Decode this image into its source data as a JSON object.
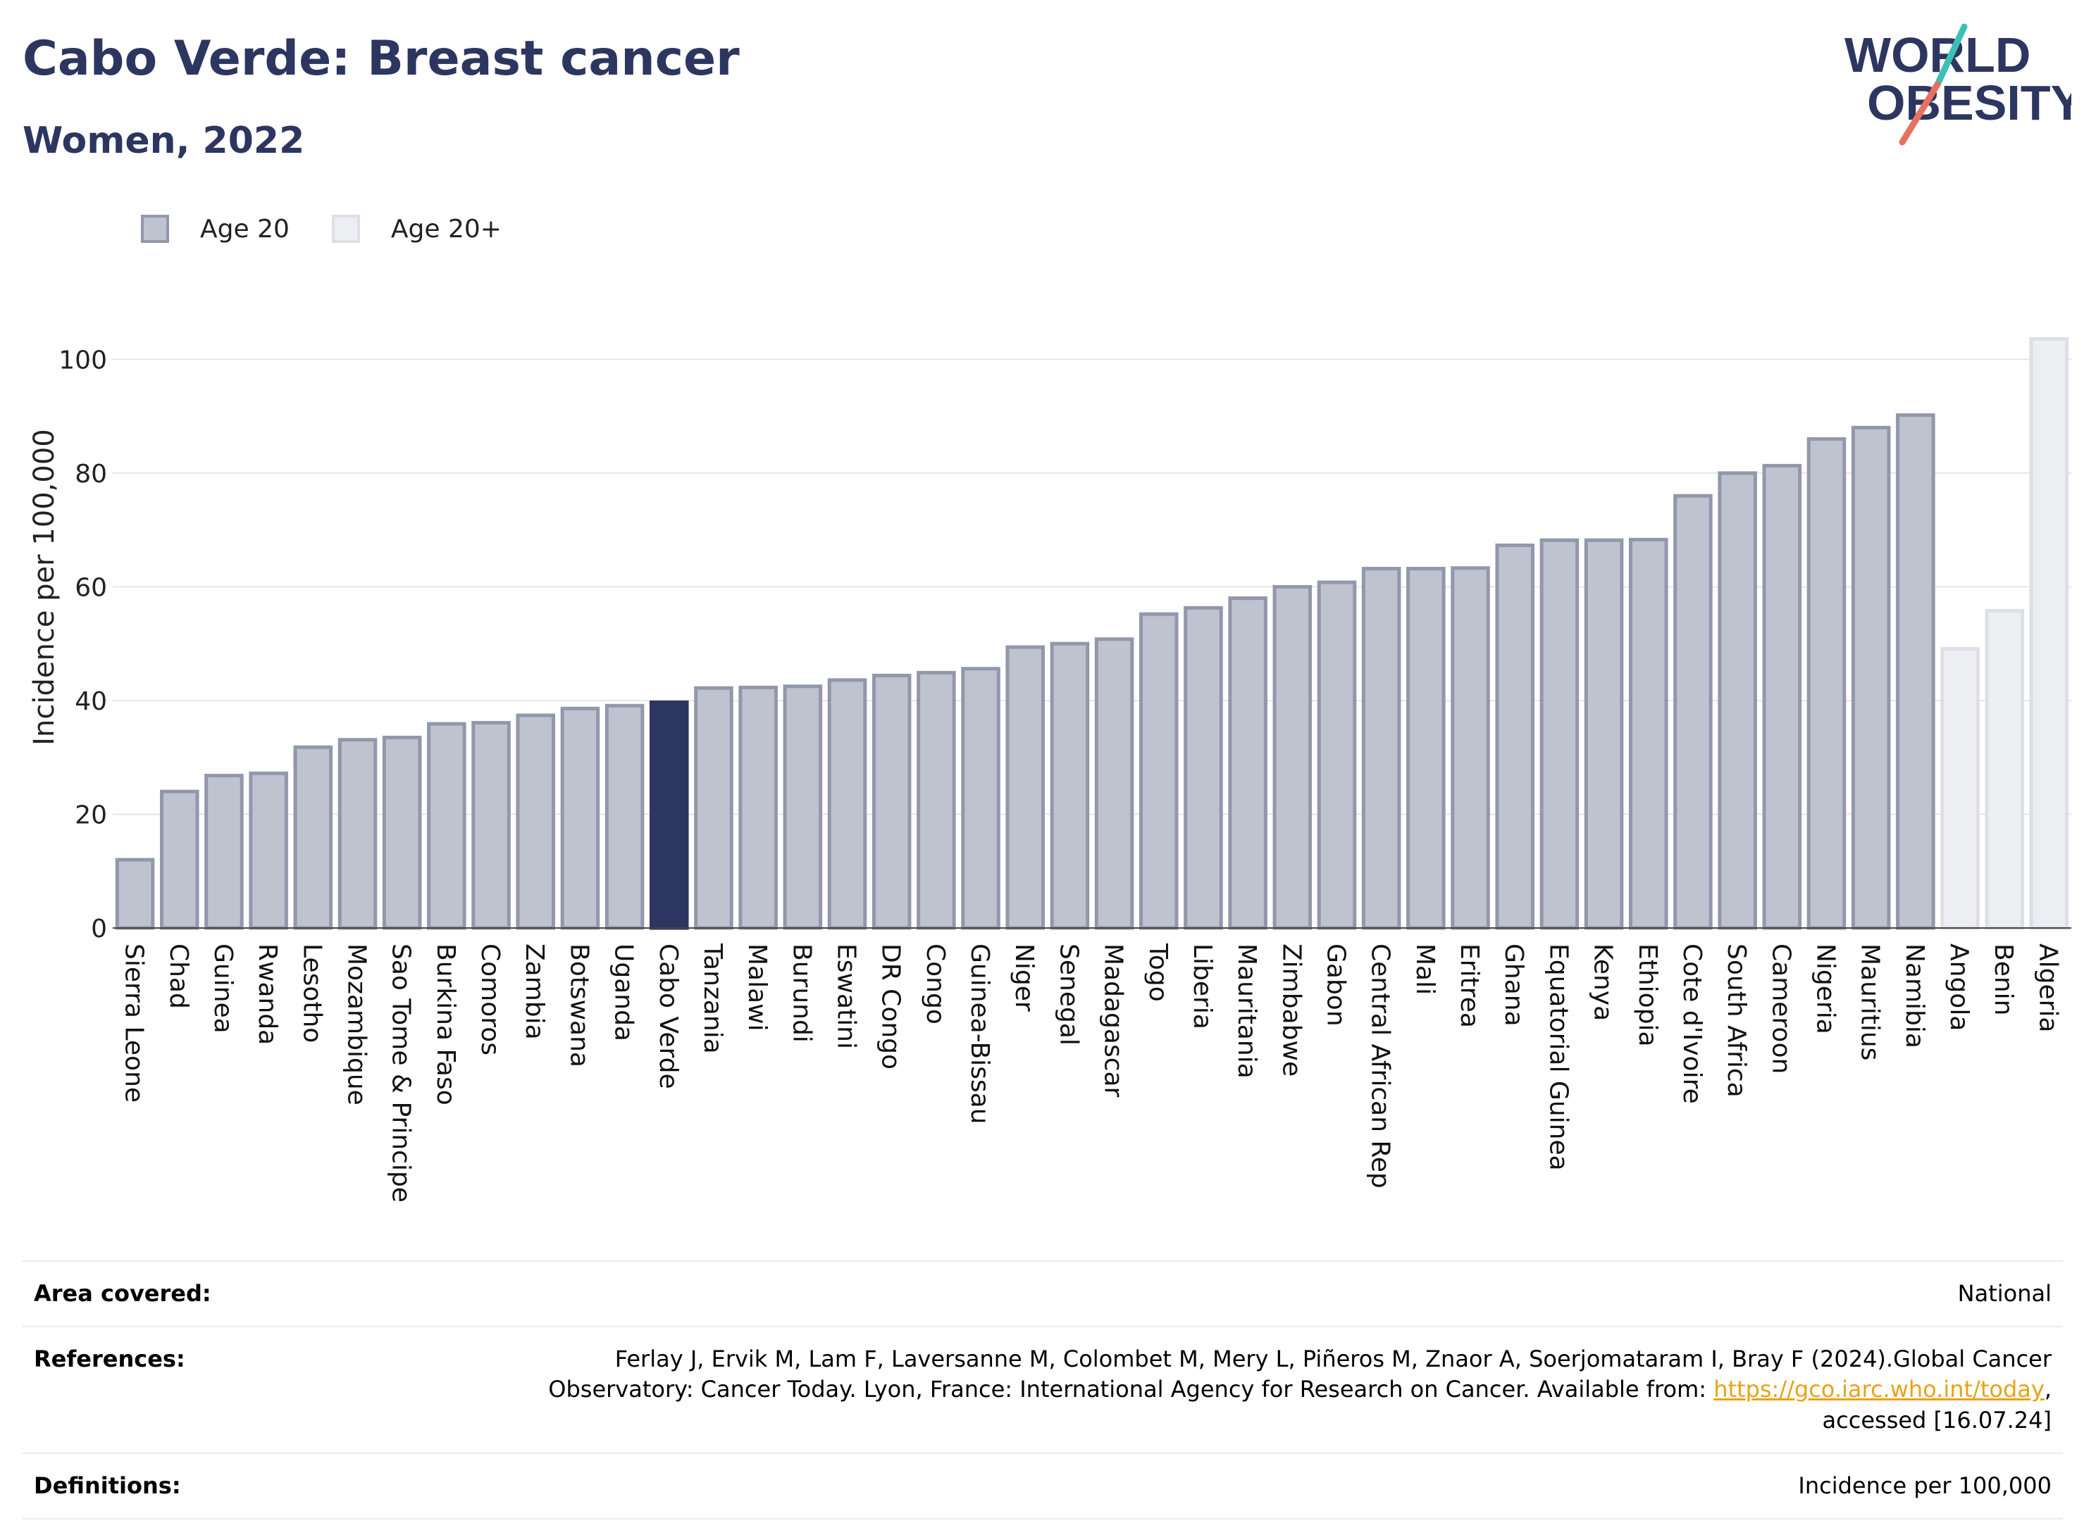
{
  "header": {
    "title": "Cabo Verde: Breast cancer",
    "subtitle": "Women, 2022",
    "logo_line1": "WORLD",
    "logo_line2": "OBESITY"
  },
  "legend": {
    "items": [
      {
        "label": "Age 20",
        "color": "#bfc2cf",
        "border": "#9297ab"
      },
      {
        "label": "Age 20+",
        "color": "#eceef2",
        "border": "#dcdfe6"
      }
    ]
  },
  "chart_data": {
    "type": "bar",
    "title": "Cabo Verde: Breast cancer",
    "subtitle": "Women, 2022",
    "ylabel": "Incidence per 100,000",
    "xlabel": "",
    "ylim": [
      0,
      105
    ],
    "yticks": [
      0,
      20,
      40,
      60,
      80,
      100
    ],
    "grid": true,
    "legend_position": "top-left",
    "highlight": "Cabo Verde",
    "highlight_color": "#2c3660",
    "categories": [
      "Sierra Leone",
      "Chad",
      "Guinea",
      "Rwanda",
      "Lesotho",
      "Mozambique",
      "Sao Tome & Principe",
      "Burkina Faso",
      "Comoros",
      "Zambia",
      "Botswana",
      "Uganda",
      "Cabo Verde",
      "Tanzania",
      "Malawi",
      "Burundi",
      "Eswatini",
      "DR Congo",
      "Congo",
      "Guinea-Bissau",
      "Niger",
      "Senegal",
      "Madagascar",
      "Togo",
      "Liberia",
      "Mauritania",
      "Zimbabwe",
      "Gabon",
      "Central African Rep",
      "Mali",
      "Eritrea",
      "Ghana",
      "Equatorial Guinea",
      "Kenya",
      "Ethiopia",
      "Cote d'Ivoire",
      "South Africa",
      "Cameroon",
      "Nigeria",
      "Mauritius",
      "Namibia",
      "Angola",
      "Benin",
      "Algeria"
    ],
    "values": [
      12.0,
      24.0,
      26.8,
      27.2,
      31.8,
      33.1,
      33.5,
      35.9,
      36.1,
      37.4,
      38.6,
      39.1,
      39.7,
      42.2,
      42.3,
      42.5,
      43.6,
      44.4,
      44.9,
      45.6,
      49.4,
      50.0,
      50.8,
      55.2,
      56.3,
      58.0,
      60.0,
      60.8,
      63.2,
      63.2,
      63.3,
      67.3,
      68.2,
      68.2,
      68.3,
      76.0,
      80.0,
      81.3,
      86.0,
      88.0,
      90.2,
      49.1,
      55.8,
      103.6
    ],
    "age_group": [
      "Age 20",
      "Age 20",
      "Age 20",
      "Age 20",
      "Age 20",
      "Age 20",
      "Age 20",
      "Age 20",
      "Age 20",
      "Age 20",
      "Age 20",
      "Age 20",
      "Age 20",
      "Age 20",
      "Age 20",
      "Age 20",
      "Age 20",
      "Age 20",
      "Age 20",
      "Age 20",
      "Age 20",
      "Age 20",
      "Age 20",
      "Age 20",
      "Age 20",
      "Age 20",
      "Age 20",
      "Age 20",
      "Age 20",
      "Age 20",
      "Age 20",
      "Age 20",
      "Age 20",
      "Age 20",
      "Age 20",
      "Age 20",
      "Age 20",
      "Age 20",
      "Age 20",
      "Age 20",
      "Age 20",
      "Age 20+",
      "Age 20+",
      "Age 20+"
    ],
    "colors": {
      "age20_fill": "#bfc2cf",
      "age20_border": "#9297ab",
      "age20plus_fill": "#eceef2",
      "age20plus_border": "#dcdfe6",
      "highlight": "#2c3660"
    }
  },
  "info": {
    "area_label": "Area covered:",
    "area_value": "National",
    "references_label": "References:",
    "references_line1": "Ferlay J, Ervik M, Lam F, Laversanne M, Colombet M, Mery L, Piñeros M, Znaor A, Soerjomataram I, Bray F (2024).Global Cancer",
    "references_line2_prefix": "Observatory: Cancer Today. Lyon, France: International Agency for Research on Cancer. Available from: ",
    "references_link": "https://gco.iarc.who.int/today",
    "references_line2_suffix": ",",
    "references_line3": "accessed [16.07.24]",
    "definitions_label": "Definitions:",
    "definitions_value": "Incidence per 100,000"
  }
}
